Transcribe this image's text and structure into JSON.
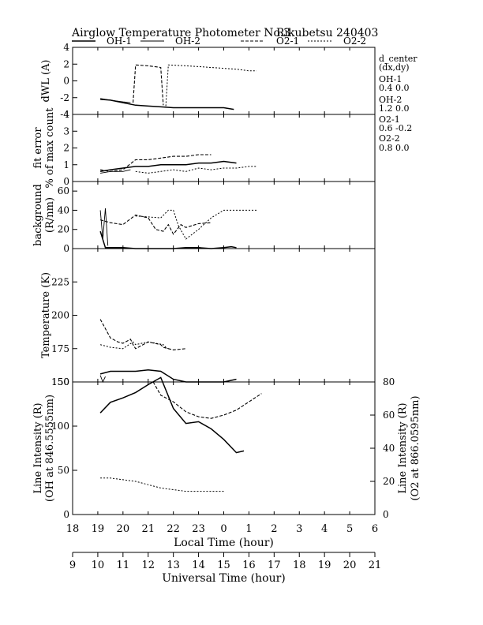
{
  "chart_data": {
    "type": "line",
    "title": "Airglow Temperature Photometer No.3",
    "station": "Rikubetsu",
    "date_code": "240403",
    "legend": [
      {
        "name": "OH-1",
        "dash": "solid"
      },
      {
        "name": "OH-2",
        "dash": "solid-thin"
      },
      {
        "name": "O2-1",
        "dash": "dashed"
      },
      {
        "name": "O2-2",
        "dash": "dotted"
      }
    ],
    "d_center": {
      "title_line1": "d_center",
      "title_line2": "(dx,dy)",
      "entries": [
        {
          "name": "OH-1",
          "value": "0.4   0.0"
        },
        {
          "name": "OH-2",
          "value": "1.2   0.0"
        },
        {
          "name": "O2-1",
          "value": "0.6   -0.2"
        },
        {
          "name": "O2-2",
          "value": "0.8   0.0"
        }
      ]
    },
    "xaxis_local": {
      "label": "Local Time (hour)",
      "ticks": [
        "18",
        "19",
        "20",
        "21",
        "22",
        "23",
        "0",
        "1",
        "2",
        "3",
        "4",
        "5",
        "6"
      ]
    },
    "xaxis_ut": {
      "label": "Universal Time (hour)",
      "ticks": [
        "9",
        "10",
        "11",
        "12",
        "13",
        "14",
        "15",
        "16",
        "17",
        "18",
        "19",
        "20",
        "21"
      ]
    },
    "panels": [
      {
        "id": "dwl",
        "ylabel": "dWL (A)",
        "ylim": [
          -4,
          4
        ],
        "ticks": [
          "4",
          "2",
          "0",
          "-2",
          "-4"
        ],
        "series": [
          {
            "name": "OH-1",
            "x": [
              19.1,
              19.5,
              20.0,
              20.5,
              21.0,
              21.5,
              22.0,
              22.5,
              23.0,
              23.5,
              24.0,
              24.4
            ],
            "y": [
              -2.2,
              -2.3,
              -2.6,
              -2.9,
              -3.0,
              -3.1,
              -3.2,
              -3.2,
              -3.2,
              -3.2,
              -3.2,
              -3.4
            ]
          },
          {
            "name": "OH-2",
            "x": [
              19.1,
              19.5,
              20.0,
              20.3
            ],
            "y": [
              -2.1,
              -2.3,
              -2.5,
              -2.6
            ]
          },
          {
            "name": "O2-1",
            "x": [
              20.4,
              20.5,
              21.0,
              21.5,
              21.6
            ],
            "y": [
              -2.6,
              1.9,
              1.8,
              1.6,
              -2.9
            ]
          },
          {
            "name": "O2-2",
            "x": [
              21.7,
              21.8,
              22.5,
              23.0,
              23.5,
              24.0,
              24.5,
              25.0,
              25.3
            ],
            "y": [
              -3.0,
              1.9,
              1.8,
              1.7,
              1.6,
              1.5,
              1.4,
              1.2,
              1.2
            ]
          }
        ]
      },
      {
        "id": "fit_error",
        "ylabel": "fit error",
        "ylabel2": "% of max count",
        "ylim": [
          0,
          4
        ],
        "ticks": [
          "4",
          "3",
          "2",
          "1",
          "0"
        ],
        "series": [
          {
            "name": "OH-1",
            "x": [
              19.1,
              19.5,
              20.0,
              20.5,
              21.0,
              21.5,
              22.0,
              22.5,
              23.0,
              23.5,
              24.0,
              24.5
            ],
            "y": [
              0.6,
              0.7,
              0.8,
              0.9,
              0.9,
              1.0,
              1.0,
              1.0,
              1.1,
              1.1,
              1.2,
              1.1
            ]
          },
          {
            "name": "OH-2",
            "x": [
              19.1,
              19.5,
              20.0,
              20.3
            ],
            "y": [
              0.5,
              0.6,
              0.6,
              0.7
            ]
          },
          {
            "name": "O2-1",
            "x": [
              19.1,
              19.5,
              20.0,
              20.5,
              21.0,
              21.5,
              22.0,
              22.5,
              23.0,
              23.5
            ],
            "y": [
              0.7,
              0.6,
              0.7,
              1.3,
              1.3,
              1.4,
              1.5,
              1.5,
              1.6,
              1.6
            ]
          },
          {
            "name": "O2-2",
            "x": [
              20.5,
              21.0,
              21.5,
              22.0,
              22.5,
              23.0,
              23.5,
              24.0,
              24.5,
              25.0,
              25.3
            ],
            "y": [
              0.6,
              0.5,
              0.6,
              0.7,
              0.6,
              0.8,
              0.7,
              0.8,
              0.8,
              0.9,
              0.9
            ]
          }
        ]
      },
      {
        "id": "background",
        "ylabel": "background",
        "ylabel2": "(R/nm)",
        "ylim": [
          0,
          70
        ],
        "ticks": [
          "60",
          "40",
          "20",
          "0"
        ],
        "series": [
          {
            "name": "OH-1",
            "x": [
              19.1,
              19.3,
              19.5,
              20.0,
              20.5,
              21.0,
              21.5,
              22.0,
              22.5,
              23.0,
              23.5,
              24.0,
              24.3,
              24.5
            ],
            "y": [
              18,
              1,
              1,
              1,
              0,
              0,
              0,
              0,
              1,
              1,
              0,
              1,
              2,
              1
            ]
          },
          {
            "name": "OH-2",
            "x": [
              19.1,
              19.2,
              19.3,
              19.4
            ],
            "y": [
              40,
              10,
              42,
              3
            ]
          },
          {
            "name": "O2-1",
            "x": [
              19.1,
              19.5,
              20.0,
              20.5,
              21.0,
              21.3,
              21.6,
              21.8,
              22.0,
              22.3,
              22.5,
              23.0,
              23.5
            ],
            "y": [
              30,
              27,
              25,
              35,
              32,
              20,
              18,
              25,
              15,
              25,
              22,
              26,
              27
            ]
          },
          {
            "name": "O2-2",
            "x": [
              20.5,
              21.0,
              21.5,
              21.8,
              22.0,
              22.2,
              22.5,
              23.0,
              23.5,
              24.0,
              24.5,
              25.0,
              25.3
            ],
            "y": [
              34,
              33,
              32,
              40,
              40,
              24,
              10,
              20,
              32,
              40,
              40,
              40,
              40
            ]
          }
        ]
      },
      {
        "id": "temperature",
        "ylabel": "Temperature (K)",
        "ylim": [
          150,
          250
        ],
        "ticks": [
          "225",
          "200",
          "175",
          "150"
        ],
        "series": [
          {
            "name": "OH-1",
            "x": [
              19.1,
              19.5,
              20.0,
              20.5,
              21.0,
              21.5,
              22.0,
              22.5,
              23.0,
              23.5,
              24.0,
              24.5
            ],
            "y": [
              156,
              158,
              158,
              158,
              159,
              158,
              152,
              150,
              150,
              150,
              150,
              152
            ]
          },
          {
            "name": "OH-2",
            "x": [
              19.1,
              19.2,
              19.3
            ],
            "y": [
              155,
              150,
              154
            ]
          },
          {
            "name": "O2-1",
            "x": [
              19.1,
              19.3,
              19.5,
              19.8,
              20.0,
              20.3,
              20.4,
              20.5,
              21.0,
              21.5,
              21.6,
              21.8,
              22.0,
              22.5
            ],
            "y": [
              197,
              190,
              183,
              180,
              179,
              182,
              178,
              175,
              180,
              178,
              176,
              175,
              174,
              175
            ]
          },
          {
            "name": "O2-2",
            "x": [
              19.1,
              19.5,
              20.0,
              20.4,
              20.5,
              21.0,
              21.6,
              21.7,
              21.8
            ],
            "y": [
              178,
              176,
              175,
              180,
              178,
              180,
              178,
              176,
              175
            ]
          }
        ]
      },
      {
        "id": "intensity",
        "ylabel": "Line Intensity (R)",
        "ylabel2": "(OH at 846.5555nm)",
        "ylabel_right": "Line Intensity (R)",
        "ylabel_right2": "(O2 at 866.0595nm)",
        "ylim": [
          0,
          150
        ],
        "ylim_right": [
          0,
          80
        ],
        "ticks": [
          "150",
          "100",
          "50",
          "0"
        ],
        "ticks_right": [
          "80",
          "60",
          "40",
          "20",
          "0"
        ],
        "series": [
          {
            "name": "OH",
            "x": [
              19.1,
              19.5,
              20.0,
              20.5,
              21.0,
              21.5,
              22.0,
              22.5,
              23.0,
              23.5,
              24.0,
              24.5,
              24.8
            ],
            "y": [
              115,
              127,
              132,
              138,
              147,
              155,
              120,
              103,
              105,
              97,
              85,
              70,
              72
            ]
          },
          {
            "name": "O2-1",
            "axis": "right",
            "x": [
              21.2,
              21.5,
              22.0,
              22.5,
              23.0,
              23.5,
              24.0,
              24.5,
              25.0,
              25.5
            ],
            "y": [
              80,
              72,
              68,
              62,
              59,
              58,
              60,
              63,
              68,
              73
            ]
          },
          {
            "name": "O2-2",
            "axis": "right",
            "x": [
              19.1,
              19.5,
              20.0,
              20.5,
              21.0,
              21.5,
              22.0,
              22.5,
              23.0,
              23.5,
              24.0
            ],
            "y": [
              22,
              22,
              21,
              20,
              18,
              16,
              15,
              14,
              14,
              14,
              14
            ]
          }
        ]
      }
    ]
  }
}
